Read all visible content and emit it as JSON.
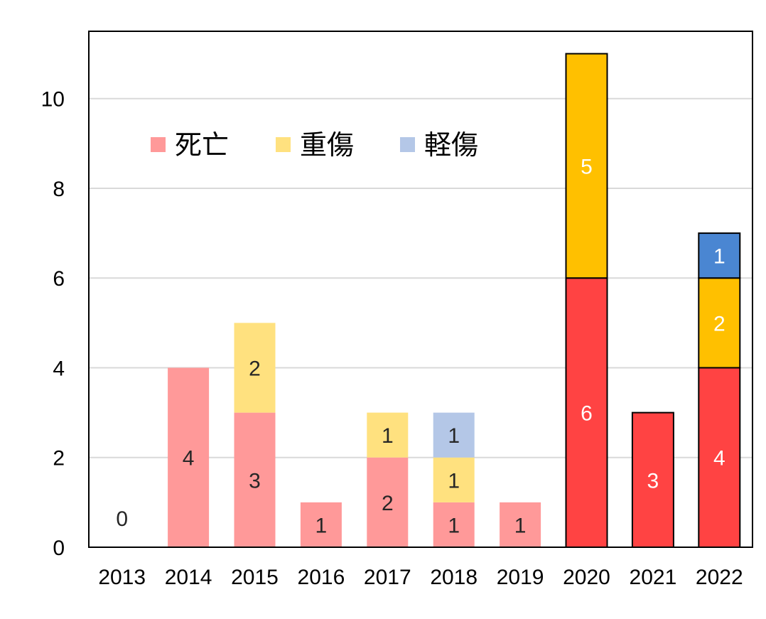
{
  "chart_data": {
    "type": "bar",
    "stacked": true,
    "categories": [
      "2013",
      "2014",
      "2015",
      "2016",
      "2017",
      "2018",
      "2019",
      "2020",
      "2021",
      "2022"
    ],
    "series": [
      {
        "name": "死亡",
        "values": [
          0,
          4,
          3,
          1,
          2,
          1,
          1,
          6,
          3,
          4
        ]
      },
      {
        "name": "重傷",
        "values": [
          0,
          0,
          2,
          0,
          1,
          1,
          0,
          5,
          0,
          2
        ]
      },
      {
        "name": "軽傷",
        "values": [
          0,
          0,
          0,
          0,
          0,
          1,
          0,
          0,
          0,
          1
        ]
      }
    ],
    "data_labels": [
      [
        "0",
        "4",
        "3",
        "1",
        "2",
        "1",
        "1",
        "6",
        "3",
        "4"
      ],
      [
        "",
        "",
        "2",
        "",
        "1",
        "1",
        "",
        "5",
        "",
        "2"
      ],
      [
        "",
        "",
        "",
        "",
        "",
        "1",
        "",
        "",
        "",
        "1"
      ]
    ],
    "highlighted_from_index": 7,
    "colors": {
      "light": [
        "#FF9999",
        "#FFE17F",
        "#B4C7E7"
      ],
      "bold": [
        "#FF4343",
        "#FFC000",
        "#4A86D2"
      ],
      "bold_outline": "#000000",
      "grid": "#D9D9D9",
      "label_light": "#262626",
      "label_bold": "#FFFFFF"
    },
    "ylim": [
      0,
      11.5
    ],
    "yticks": [
      0,
      2,
      4,
      6,
      8,
      10
    ],
    "grid": true,
    "legend": {
      "position": "top-left",
      "labels": [
        "死亡",
        "重傷",
        "軽傷"
      ]
    },
    "title": "",
    "xlabel": "",
    "ylabel": ""
  }
}
